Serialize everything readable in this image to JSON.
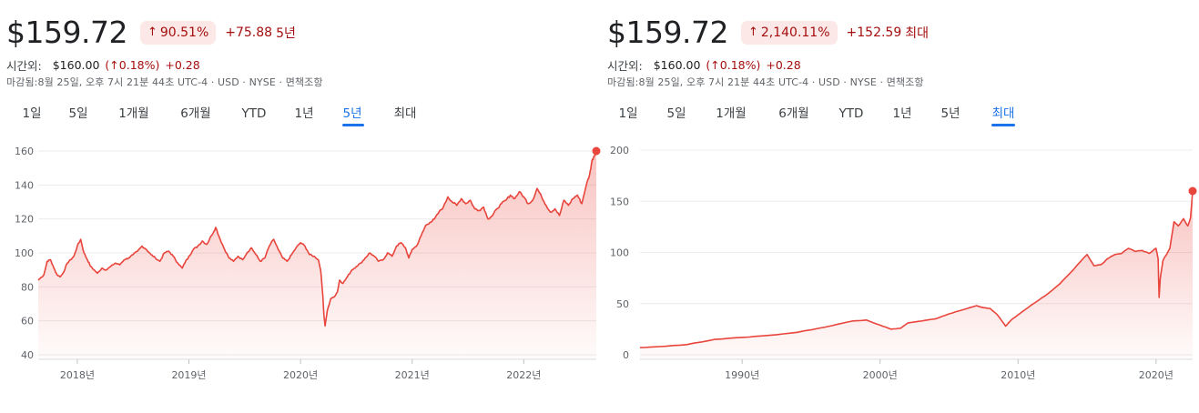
{
  "panels": [
    {
      "price": "$159.72",
      "pct_arrow": "↑",
      "pct_change": "90.51%",
      "abs_change": "+75.88",
      "period_label": "5년",
      "after_hours": {
        "label": "시간외:",
        "price": "$160.00",
        "pct": "(↑0.18%)",
        "abs": "+0.28"
      },
      "close_info": "마감됨:8월 25일, 오후 7시 21분 44초 UTC-4 · USD · NYSE · 면책조항",
      "tabs": [
        "1일",
        "5일",
        "1개월",
        "6개월",
        "YTD",
        "1년",
        "5년",
        "최대"
      ],
      "active_tab": 6
    },
    {
      "price": "$159.72",
      "pct_arrow": "↑",
      "pct_change": "2,140.11%",
      "abs_change": "+152.59",
      "period_label": "최대",
      "after_hours": {
        "label": "시간외:",
        "price": "$160.00",
        "pct": "(↑0.18%)",
        "abs": "+0.28"
      },
      "close_info": "마감됨:8월 25일, 오후 7시 21분 44초 UTC-4 · USD · NYSE · 면책조항",
      "tabs": [
        "1일",
        "5일",
        "1개월",
        "6개월",
        "YTD",
        "1년",
        "5년",
        "최대"
      ],
      "active_tab": 7
    }
  ],
  "colors": {
    "line": "#e8453c",
    "negative_text": "#a50e0e",
    "badge_bg": "#fce8e6",
    "accent": "#1a73e8",
    "grid": "#ececec"
  },
  "chart_data": [
    {
      "type": "area",
      "title": "",
      "xlabel": "",
      "ylabel": "",
      "ylim": [
        40,
        160
      ],
      "xlim": [
        2017.65,
        2022.65
      ],
      "y_ticks": [
        40,
        60,
        80,
        100,
        120,
        140,
        160
      ],
      "x_ticks": [
        {
          "value": 2018,
          "label": "2018년"
        },
        {
          "value": 2019,
          "label": "2019년"
        },
        {
          "value": 2020,
          "label": "2020년"
        },
        {
          "value": 2021,
          "label": "2021년"
        },
        {
          "value": 2022,
          "label": "2022년"
        }
      ],
      "grid": true,
      "series": [
        {
          "points": [
            [
              2017.65,
              84
            ],
            [
              2017.7,
              87
            ],
            [
              2017.73,
              95
            ],
            [
              2017.76,
              96
            ],
            [
              2017.79,
              91
            ],
            [
              2017.82,
              87
            ],
            [
              2017.85,
              86
            ],
            [
              2017.88,
              89
            ],
            [
              2017.91,
              94
            ],
            [
              2017.94,
              96
            ],
            [
              2017.97,
              98
            ],
            [
              2018.0,
              104
            ],
            [
              2018.03,
              108
            ],
            [
              2018.06,
              100
            ],
            [
              2018.09,
              96
            ],
            [
              2018.12,
              92
            ],
            [
              2018.15,
              90
            ],
            [
              2018.18,
              88
            ],
            [
              2018.22,
              91
            ],
            [
              2018.26,
              90
            ],
            [
              2018.3,
              92
            ],
            [
              2018.34,
              94
            ],
            [
              2018.38,
              93
            ],
            [
              2018.42,
              96
            ],
            [
              2018.46,
              97
            ],
            [
              2018.5,
              99
            ],
            [
              2018.54,
              101
            ],
            [
              2018.58,
              104
            ],
            [
              2018.62,
              102
            ],
            [
              2018.66,
              99
            ],
            [
              2018.7,
              97
            ],
            [
              2018.74,
              95
            ],
            [
              2018.78,
              100
            ],
            [
              2018.82,
              101
            ],
            [
              2018.86,
              98
            ],
            [
              2018.9,
              94
            ],
            [
              2018.94,
              91
            ],
            [
              2018.97,
              95
            ],
            [
              2019.0,
              98
            ],
            [
              2019.04,
              102
            ],
            [
              2019.08,
              104
            ],
            [
              2019.12,
              107
            ],
            [
              2019.16,
              105
            ],
            [
              2019.2,
              110
            ],
            [
              2019.24,
              115
            ],
            [
              2019.28,
              108
            ],
            [
              2019.32,
              102
            ],
            [
              2019.36,
              97
            ],
            [
              2019.4,
              95
            ],
            [
              2019.44,
              98
            ],
            [
              2019.48,
              96
            ],
            [
              2019.52,
              100
            ],
            [
              2019.56,
              103
            ],
            [
              2019.6,
              99
            ],
            [
              2019.64,
              95
            ],
            [
              2019.68,
              97
            ],
            [
              2019.72,
              104
            ],
            [
              2019.76,
              108
            ],
            [
              2019.8,
              102
            ],
            [
              2019.84,
              97
            ],
            [
              2019.88,
              95
            ],
            [
              2019.92,
              99
            ],
            [
              2019.96,
              103
            ],
            [
              2020.0,
              106
            ],
            [
              2020.04,
              104
            ],
            [
              2020.08,
              99
            ],
            [
              2020.12,
              98
            ],
            [
              2020.16,
              96
            ],
            [
              2020.18,
              90
            ],
            [
              2020.2,
              75
            ],
            [
              2020.21,
              63
            ],
            [
              2020.22,
              57
            ],
            [
              2020.24,
              66
            ],
            [
              2020.27,
              73
            ],
            [
              2020.3,
              74
            ],
            [
              2020.33,
              77
            ],
            [
              2020.35,
              84
            ],
            [
              2020.38,
              82
            ],
            [
              2020.42,
              86
            ],
            [
              2020.46,
              90
            ],
            [
              2020.5,
              92
            ],
            [
              2020.54,
              94
            ],
            [
              2020.58,
              97
            ],
            [
              2020.62,
              100
            ],
            [
              2020.66,
              98
            ],
            [
              2020.7,
              95
            ],
            [
              2020.74,
              96
            ],
            [
              2020.78,
              100
            ],
            [
              2020.82,
              98
            ],
            [
              2020.86,
              104
            ],
            [
              2020.9,
              106
            ],
            [
              2020.94,
              103
            ],
            [
              2020.97,
              97
            ],
            [
              2021.0,
              102
            ],
            [
              2021.04,
              104
            ],
            [
              2021.08,
              110
            ],
            [
              2021.12,
              116
            ],
            [
              2021.16,
              118
            ],
            [
              2021.2,
              120
            ],
            [
              2021.24,
              124
            ],
            [
              2021.28,
              127
            ],
            [
              2021.32,
              133
            ],
            [
              2021.36,
              130
            ],
            [
              2021.4,
              128
            ],
            [
              2021.44,
              132
            ],
            [
              2021.48,
              129
            ],
            [
              2021.52,
              131
            ],
            [
              2021.56,
              126
            ],
            [
              2021.6,
              125
            ],
            [
              2021.64,
              127
            ],
            [
              2021.68,
              120
            ],
            [
              2021.72,
              122
            ],
            [
              2021.76,
              126
            ],
            [
              2021.8,
              129
            ],
            [
              2021.84,
              131
            ],
            [
              2021.88,
              134
            ],
            [
              2021.92,
              132
            ],
            [
              2021.96,
              136
            ],
            [
              2022.0,
              133
            ],
            [
              2022.04,
              129
            ],
            [
              2022.08,
              131
            ],
            [
              2022.12,
              138
            ],
            [
              2022.16,
              133
            ],
            [
              2022.2,
              128
            ],
            [
              2022.24,
              124
            ],
            [
              2022.28,
              126
            ],
            [
              2022.32,
              122
            ],
            [
              2022.36,
              131
            ],
            [
              2022.4,
              128
            ],
            [
              2022.44,
              132
            ],
            [
              2022.48,
              134
            ],
            [
              2022.52,
              129
            ],
            [
              2022.56,
              140
            ],
            [
              2022.59,
              146
            ],
            [
              2022.61,
              154
            ],
            [
              2022.63,
              157
            ],
            [
              2022.65,
              160
            ]
          ]
        }
      ]
    },
    {
      "type": "area",
      "title": "",
      "xlabel": "",
      "ylabel": "",
      "ylim": [
        0,
        200
      ],
      "xlim": [
        1982.6,
        2022.65
      ],
      "y_ticks": [
        0,
        50,
        100,
        150,
        200
      ],
      "x_ticks": [
        {
          "value": 1990,
          "label": "1990년"
        },
        {
          "value": 2000,
          "label": "2000년"
        },
        {
          "value": 2010,
          "label": "2010년"
        },
        {
          "value": 2020,
          "label": "2020년"
        }
      ],
      "grid": true,
      "series": [
        {
          "points": [
            [
              1982.6,
              7
            ],
            [
              1984.0,
              8
            ],
            [
              1986.0,
              10
            ],
            [
              1988.0,
              15
            ],
            [
              1990.0,
              17
            ],
            [
              1992.0,
              19
            ],
            [
              1994.0,
              22
            ],
            [
              1996.0,
              27
            ],
            [
              1998.0,
              33
            ],
            [
              1999.0,
              34
            ],
            [
              2000.0,
              29
            ],
            [
              2000.8,
              25
            ],
            [
              2001.5,
              26
            ],
            [
              2002.0,
              31
            ],
            [
              2003.0,
              33
            ],
            [
              2004.0,
              35
            ],
            [
              2005.0,
              40
            ],
            [
              2006.0,
              44
            ],
            [
              2007.0,
              48
            ],
            [
              2007.5,
              46
            ],
            [
              2008.0,
              45
            ],
            [
              2008.5,
              39
            ],
            [
              2009.1,
              28
            ],
            [
              2009.5,
              34
            ],
            [
              2010.0,
              39
            ],
            [
              2011.0,
              49
            ],
            [
              2012.0,
              58
            ],
            [
              2013.0,
              69
            ],
            [
              2014.0,
              83
            ],
            [
              2015.0,
              98
            ],
            [
              2015.5,
              87
            ],
            [
              2016.0,
              88
            ],
            [
              2016.5,
              94
            ],
            [
              2017.0,
              98
            ],
            [
              2017.5,
              99
            ],
            [
              2018.0,
              104
            ],
            [
              2018.5,
              101
            ],
            [
              2019.0,
              102
            ],
            [
              2019.5,
              99
            ],
            [
              2020.0,
              104
            ],
            [
              2020.15,
              94
            ],
            [
              2020.22,
              56
            ],
            [
              2020.3,
              74
            ],
            [
              2020.5,
              92
            ],
            [
              2021.0,
              104
            ],
            [
              2021.3,
              130
            ],
            [
              2021.6,
              126
            ],
            [
              2022.0,
              133
            ],
            [
              2022.3,
              126
            ],
            [
              2022.5,
              134
            ],
            [
              2022.65,
              160
            ]
          ]
        }
      ]
    }
  ]
}
